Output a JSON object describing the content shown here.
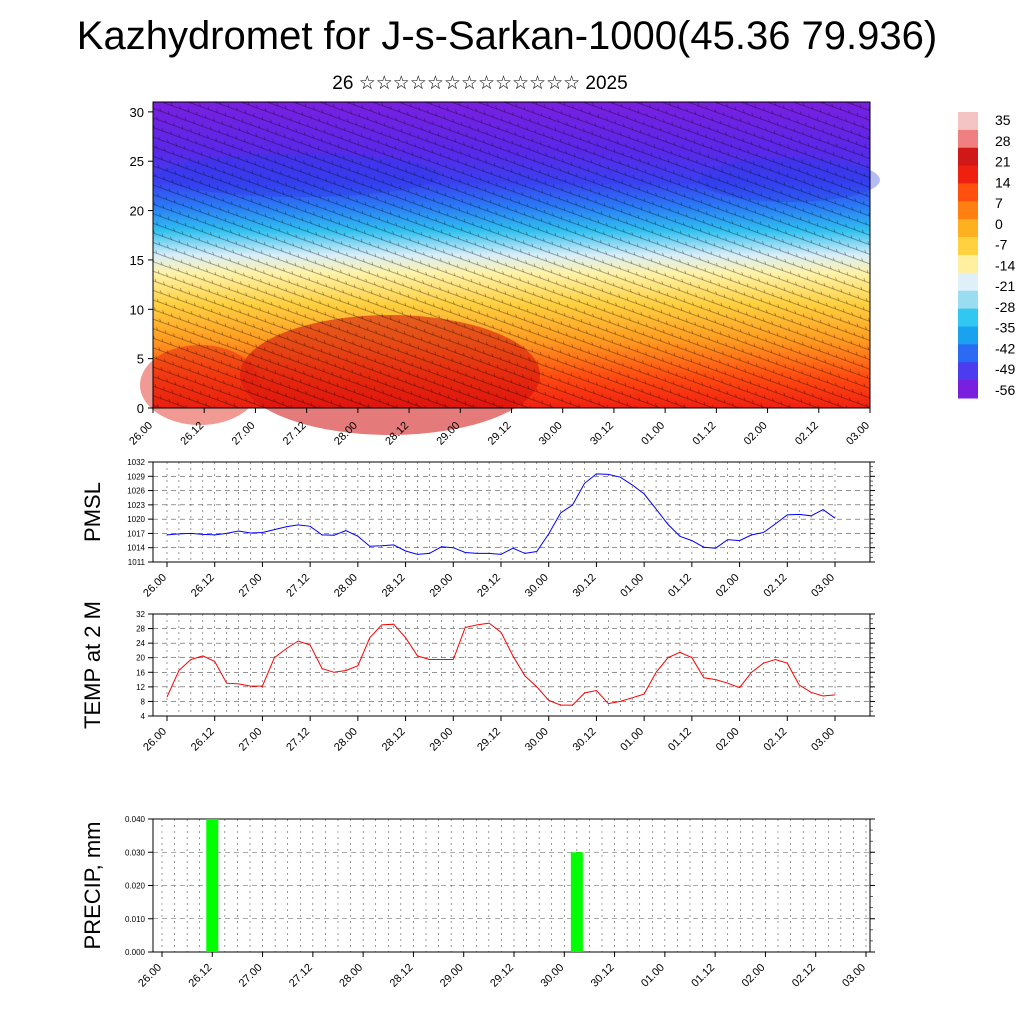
{
  "header": {
    "title": "Kazhydromet for J-s-Sarkan-1000(45.36 79.936)",
    "subtitle": "26 ☆☆☆☆☆☆☆☆☆☆☆☆☆ 2025"
  },
  "time_labels": [
    "26.00",
    "26.12",
    "27.00",
    "27.12",
    "28.00",
    "28.12",
    "29.00",
    "29.12",
    "30.00",
    "30.12",
    "01.00",
    "01.12",
    "02.00",
    "02.12",
    "03.00"
  ],
  "colors": {
    "pmsl_line": "#0000ff",
    "temp_line": "#ff0000",
    "precip_bar": "#00ff00",
    "colorbar": [
      "#7a1fe0",
      "#4b3cf0",
      "#2a6af5",
      "#1aa2f0",
      "#30c8f0",
      "#9adcf0",
      "#e0f0f8",
      "#fff0a0",
      "#ffd040",
      "#ffb020",
      "#ff8010",
      "#ff5010",
      "#f02010",
      "#d01818",
      "#f08080",
      "#f4c4c4"
    ]
  },
  "chart_data": [
    {
      "type": "heatmap",
      "name": "cross-section",
      "y_ticks": [
        0,
        5,
        10,
        15,
        20,
        25,
        30
      ],
      "ylim": [
        0,
        31
      ],
      "colorbar_labels": [
        "35",
        "28",
        "21",
        "14",
        "7",
        "0",
        "-7",
        "-14",
        "-21",
        "-28",
        "-35",
        "-42",
        "-49",
        "-56"
      ]
    },
    {
      "type": "line",
      "ylabel": "PMSL",
      "ylim": [
        1011,
        1032
      ],
      "y_ticks": [
        1011,
        1014,
        1017,
        1020,
        1023,
        1026,
        1029,
        1032
      ],
      "x": [
        0,
        3,
        6,
        9,
        12,
        15,
        18,
        21,
        24,
        27,
        30,
        33,
        36,
        39,
        42,
        45,
        48,
        51,
        54,
        57,
        60,
        63,
        66,
        69,
        72,
        75,
        78,
        81,
        84,
        87,
        90,
        93,
        96,
        99,
        102,
        105,
        108,
        111,
        114,
        117,
        120,
        123,
        126,
        129,
        132,
        135,
        138,
        141,
        144,
        147,
        150,
        153,
        156,
        159,
        162,
        165,
        168
      ],
      "values": [
        1016.7,
        1016.9,
        1017.0,
        1016.8,
        1016.7,
        1017.0,
        1017.5,
        1017.1,
        1017.2,
        1017.8,
        1018.4,
        1018.8,
        1018.5,
        1016.7,
        1016.6,
        1017.6,
        1016.4,
        1014.3,
        1014.4,
        1014.6,
        1013.3,
        1012.6,
        1012.8,
        1014.2,
        1014.0,
        1013.0,
        1012.8,
        1012.8,
        1012.6,
        1013.9,
        1012.8,
        1013.2,
        1016.9,
        1021.3,
        1023.0,
        1027.5,
        1029.5,
        1029.4,
        1028.8,
        1027.2,
        1025.3,
        1022.1,
        1018.9,
        1016.4,
        1015.5,
        1014.1,
        1013.9,
        1015.7,
        1015.5,
        1016.7,
        1017.2,
        1019.0,
        1020.9,
        1021.0,
        1020.7,
        1022.0,
        1020.2
      ]
    },
    {
      "type": "line",
      "ylabel": "TEMP at 2 M",
      "ylim": [
        4,
        32
      ],
      "y_ticks": [
        4,
        8,
        12,
        16,
        20,
        24,
        28,
        32
      ],
      "x": [
        0,
        3,
        6,
        9,
        12,
        15,
        18,
        21,
        24,
        27,
        30,
        33,
        36,
        39,
        42,
        45,
        48,
        51,
        54,
        57,
        60,
        63,
        66,
        69,
        72,
        75,
        78,
        81,
        84,
        87,
        90,
        93,
        96,
        99,
        102,
        105,
        108,
        111,
        114,
        117,
        120,
        123,
        126,
        129,
        132,
        135,
        138,
        141,
        144,
        147,
        150,
        153,
        156,
        159,
        162,
        165,
        168
      ],
      "values": [
        9.2,
        16.5,
        19.5,
        20.5,
        19.0,
        13.0,
        12.8,
        12.2,
        12.2,
        20.0,
        22.5,
        24.6,
        23.5,
        17.0,
        16.0,
        16.5,
        17.8,
        25.5,
        29.0,
        29.2,
        25.5,
        20.5,
        19.5,
        19.5,
        19.5,
        28.3,
        29.0,
        29.5,
        27.0,
        20.5,
        15.0,
        12.0,
        8.3,
        7.0,
        7.0,
        10.3,
        11.0,
        7.4,
        8.0,
        9.0,
        10.0,
        16.0,
        20.0,
        21.5,
        20.0,
        14.5,
        14.0,
        13.0,
        11.8,
        16.0,
        18.5,
        19.5,
        18.5,
        12.5,
        10.5,
        9.5,
        9.8
      ]
    },
    {
      "type": "bar",
      "ylabel": "PRECIP, mm",
      "ylim": [
        0.0,
        0.04
      ],
      "y_ticks": [
        "0.000",
        "0.010",
        "0.020",
        "0.030",
        "0.040"
      ],
      "bars": [
        {
          "x": 12,
          "value": 0.04
        },
        {
          "x": 99,
          "value": 0.03
        }
      ]
    }
  ]
}
